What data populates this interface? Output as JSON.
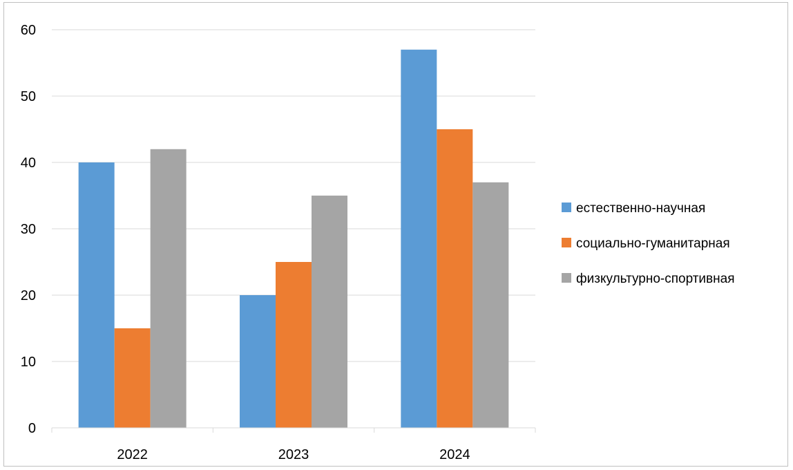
{
  "chart_data": {
    "type": "bar",
    "categories": [
      "2022",
      "2023",
      "2024"
    ],
    "series": [
      {
        "name": "естественно-научная",
        "color": "#5b9bd5",
        "values": [
          40,
          20,
          57
        ]
      },
      {
        "name": "социально-гуманитарная",
        "color": "#ed7d31",
        "values": [
          15,
          25,
          45
        ]
      },
      {
        "name": "физкультурно-спортивная",
        "color": "#a5a5a5",
        "values": [
          42,
          35,
          37
        ]
      }
    ],
    "ylim": [
      0,
      60
    ],
    "yticks": [
      "0",
      "10",
      "20",
      "30",
      "40",
      "50",
      "60"
    ],
    "grid": true,
    "legend_position": "right"
  }
}
